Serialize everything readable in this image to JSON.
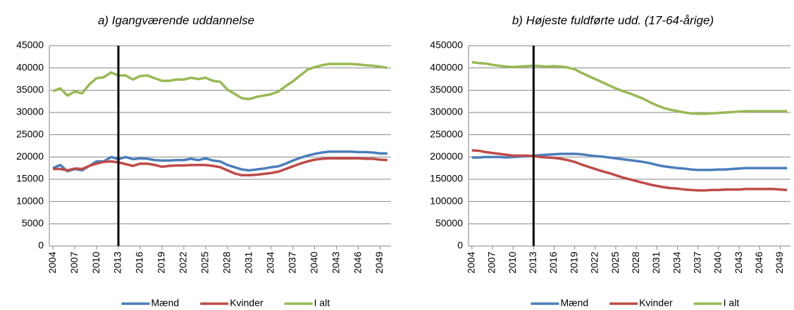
{
  "chart_data": [
    {
      "type": "line",
      "title": "a) Igangværende uddannelse",
      "x": [
        2004,
        2005,
        2006,
        2007,
        2008,
        2009,
        2010,
        2011,
        2012,
        2013,
        2014,
        2015,
        2016,
        2017,
        2018,
        2019,
        2020,
        2021,
        2022,
        2023,
        2024,
        2025,
        2026,
        2027,
        2028,
        2029,
        2030,
        2031,
        2032,
        2033,
        2034,
        2035,
        2036,
        2037,
        2038,
        2039,
        2040,
        2041,
        2042,
        2043,
        2044,
        2045,
        2046,
        2047,
        2048,
        2049,
        2050
      ],
      "xlim": [
        2003.5,
        2050.5
      ],
      "xticks": [
        2004,
        2007,
        2010,
        2013,
        2016,
        2019,
        2022,
        2025,
        2028,
        2031,
        2034,
        2037,
        2040,
        2043,
        2046,
        2049
      ],
      "ylim": [
        0,
        45000
      ],
      "yticks": [
        0,
        5000,
        10000,
        15000,
        20000,
        25000,
        30000,
        35000,
        40000,
        45000
      ],
      "grid": true,
      "marker_x": 2013,
      "legend": "bottom",
      "series": [
        {
          "name": "Mænd",
          "color": "#4a7ebb",
          "values": [
            17500,
            18200,
            16800,
            17300,
            17000,
            18000,
            19000,
            19000,
            20000,
            19500,
            20000,
            19500,
            19700,
            19600,
            19300,
            19200,
            19200,
            19300,
            19300,
            19600,
            19300,
            19700,
            19200,
            19000,
            18200,
            17700,
            17200,
            17000,
            17200,
            17400,
            17700,
            17900,
            18500,
            19200,
            19800,
            20300,
            20700,
            21000,
            21200,
            21200,
            21200,
            21200,
            21100,
            21100,
            21000,
            20800,
            20800
          ]
        },
        {
          "name": "Kvinder",
          "color": "#be4b48",
          "values": [
            17300,
            17300,
            17000,
            17400,
            17300,
            18000,
            18500,
            18900,
            19000,
            18800,
            18400,
            18000,
            18500,
            18500,
            18200,
            17800,
            18000,
            18100,
            18100,
            18200,
            18200,
            18200,
            18000,
            17700,
            17000,
            16300,
            15900,
            15900,
            16000,
            16200,
            16400,
            16700,
            17300,
            17900,
            18500,
            19000,
            19400,
            19600,
            19700,
            19700,
            19700,
            19700,
            19700,
            19600,
            19600,
            19400,
            19300
          ]
        },
        {
          "name": "I alt",
          "color": "#98b954",
          "values": [
            34800,
            35400,
            33800,
            34700,
            34300,
            36300,
            37700,
            37900,
            39000,
            38300,
            38300,
            37400,
            38200,
            38300,
            37700,
            37100,
            37100,
            37400,
            37400,
            37800,
            37500,
            37800,
            37100,
            36900,
            35100,
            34200,
            33200,
            33000,
            33500,
            33800,
            34100,
            34700,
            35900,
            37000,
            38300,
            39600,
            40200,
            40600,
            40900,
            40900,
            40900,
            40900,
            40800,
            40600,
            40500,
            40300,
            40000
          ]
        }
      ]
    },
    {
      "type": "line",
      "title": "b) Højeste fuldførte udd. (17-64-årige)",
      "x": [
        2004,
        2005,
        2006,
        2007,
        2008,
        2009,
        2010,
        2011,
        2012,
        2013,
        2014,
        2015,
        2016,
        2017,
        2018,
        2019,
        2020,
        2021,
        2022,
        2023,
        2024,
        2025,
        2026,
        2027,
        2028,
        2029,
        2030,
        2031,
        2032,
        2033,
        2034,
        2035,
        2036,
        2037,
        2038,
        2039,
        2040,
        2041,
        2042,
        2043,
        2044,
        2045,
        2046,
        2047,
        2048,
        2049,
        2050
      ],
      "xlim": [
        2003.5,
        2050.5
      ],
      "xticks": [
        2004,
        2007,
        2010,
        2013,
        2016,
        2019,
        2022,
        2025,
        2028,
        2031,
        2034,
        2037,
        2040,
        2043,
        2046,
        2049
      ],
      "ylim": [
        0,
        450000
      ],
      "yticks": [
        0,
        50000,
        100000,
        150000,
        200000,
        250000,
        300000,
        350000,
        400000,
        450000
      ],
      "grid": true,
      "marker_x": 2013,
      "legend": "bottom",
      "series": [
        {
          "name": "Mænd",
          "color": "#4a7ebb",
          "values": [
            199000,
            199000,
            200000,
            200000,
            200000,
            199000,
            200000,
            201000,
            202000,
            203000,
            204000,
            205000,
            206000,
            207000,
            207000,
            207000,
            206000,
            204000,
            202000,
            201000,
            199000,
            197000,
            195000,
            193000,
            191000,
            189000,
            186000,
            182000,
            179000,
            177000,
            175000,
            174000,
            172000,
            171000,
            171000,
            171000,
            172000,
            172000,
            173000,
            174000,
            175000,
            175000,
            175000,
            175000,
            175000,
            175000,
            175000
          ]
        },
        {
          "name": "Kvinder",
          "color": "#be4b48",
          "values": [
            215000,
            214000,
            211000,
            209000,
            207000,
            205000,
            203000,
            203000,
            203000,
            202000,
            200000,
            199000,
            198000,
            196000,
            193000,
            189000,
            183000,
            178000,
            173000,
            168000,
            164000,
            159000,
            154000,
            150000,
            146000,
            142000,
            138000,
            135000,
            132000,
            130000,
            129000,
            127000,
            126000,
            125000,
            125000,
            126000,
            126000,
            127000,
            127000,
            127000,
            128000,
            128000,
            128000,
            128000,
            128000,
            127000,
            126000
          ]
        },
        {
          "name": "I alt",
          "color": "#98b954",
          "values": [
            413000,
            411000,
            410000,
            407000,
            405000,
            403000,
            402000,
            403000,
            404000,
            405000,
            404000,
            403000,
            404000,
            403000,
            401000,
            397000,
            389000,
            382000,
            375000,
            368000,
            361000,
            354000,
            348000,
            343000,
            337000,
            331000,
            323000,
            316000,
            310000,
            306000,
            303000,
            300000,
            298000,
            297000,
            297000,
            298000,
            299000,
            300000,
            301000,
            302000,
            303000,
            303000,
            303000,
            303000,
            303000,
            303000,
            303000
          ]
        }
      ]
    }
  ]
}
